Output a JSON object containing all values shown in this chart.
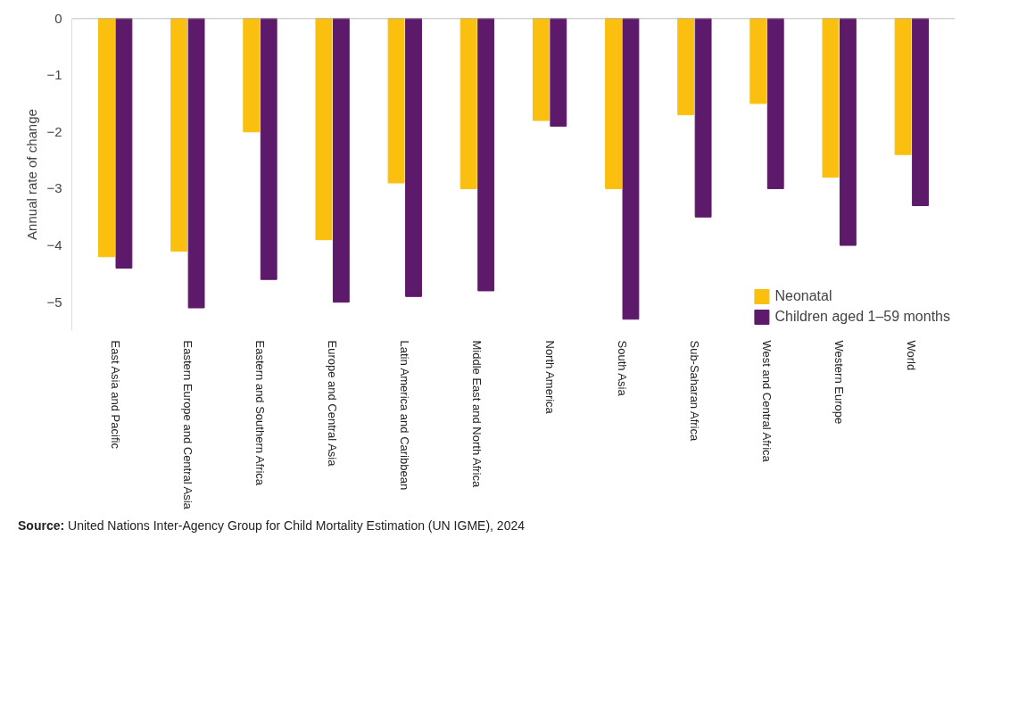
{
  "chart_data": {
    "type": "bar",
    "ylabel": "Annual rate of change",
    "categories": [
      "East Asia and Pacific",
      "Eastern Europe and Central Asia",
      "Eastern and Southern Africa",
      "Europe and Central Asia",
      "Latin America and Caribbean",
      "Middle East and North Africa",
      "North America",
      "South Asia",
      "Sub-Saharan Africa",
      "West and Central Africa",
      "Western Europe",
      "World"
    ],
    "series": [
      {
        "name": "Neonatal",
        "color": "#fbbf0f",
        "values": [
          -4.2,
          -4.1,
          -2.0,
          -3.9,
          -2.9,
          -3.0,
          -1.8,
          -3.0,
          -1.7,
          -1.5,
          -2.8,
          -2.4
        ]
      },
      {
        "name": "Children aged 1–59 months",
        "color": "#5e1a6a",
        "values": [
          -4.4,
          -5.1,
          -4.6,
          -5.0,
          -4.9,
          -4.8,
          -1.9,
          -5.3,
          -3.5,
          -3.0,
          -4.0,
          -3.3
        ]
      }
    ],
    "ylim": [
      -5.5,
      0
    ],
    "yticks": [
      0,
      -1,
      -2,
      -3,
      -4,
      -5
    ],
    "ref_lines": [
      {
        "axis": "y",
        "value": 0
      }
    ],
    "grid": false,
    "legend": "bottom right",
    "annotations": [
      "Source: United Nations Inter-Agency Group for Child Mortality Estimation (UN IGME), 2024"
    ]
  }
}
